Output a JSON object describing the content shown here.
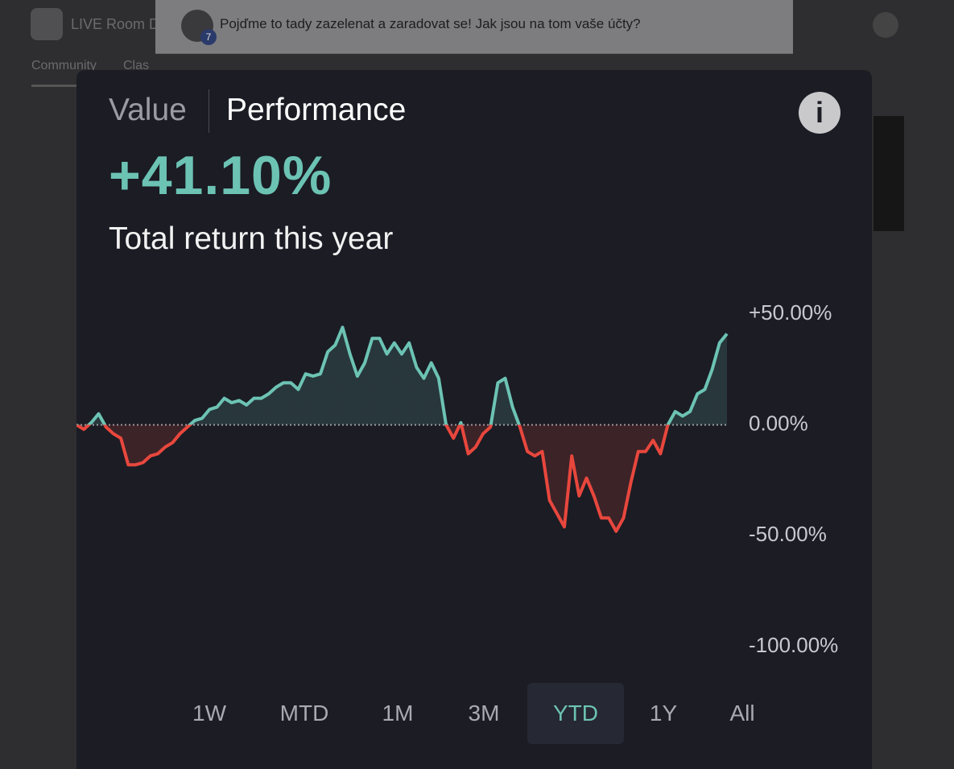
{
  "background": {
    "app_name": "LIVE Room D",
    "tabs": [
      "Community",
      "Clas"
    ],
    "post_title": "Pojďme to tady zazelenat a zaradovat se! Jak jsou na tom vaše účty?",
    "avatar_badge": "7"
  },
  "modal": {
    "tabs": [
      "Value",
      "Performance"
    ],
    "active_tab": "Performance",
    "headline": "+41.10%",
    "subtitle": "Total return this year",
    "periods": [
      "1W",
      "MTD",
      "1M",
      "3M",
      "YTD",
      "1Y",
      "All"
    ],
    "selected_period": "YTD"
  },
  "chart_data": {
    "type": "line",
    "values": [
      0,
      -2,
      1,
      5,
      -1,
      -4,
      -6,
      -18,
      -18,
      -17,
      -14,
      -13,
      -10,
      -8,
      -4,
      -1,
      2,
      3,
      7,
      8,
      12,
      10,
      11,
      9,
      12,
      12,
      14,
      17,
      19,
      19,
      16,
      23,
      22,
      23,
      33,
      36,
      44,
      32,
      22,
      28,
      39,
      39,
      32,
      37,
      32,
      37,
      26,
      21,
      28,
      21,
      0,
      -6,
      1,
      -13,
      -10,
      -4,
      -1,
      19,
      21,
      8,
      -1,
      -12,
      -14,
      -12,
      -34,
      -40,
      -46,
      -14,
      -32,
      -24,
      -32,
      -42,
      -42,
      -48,
      -42,
      -26,
      -12,
      -12,
      -7,
      -13,
      0,
      6,
      4,
      6,
      14,
      16,
      25,
      37,
      41.1
    ],
    "ylim": [
      -100,
      50
    ],
    "yticks": [
      {
        "value": 50,
        "label": "+50.00%"
      },
      {
        "value": 0,
        "label": "0.00%"
      },
      {
        "value": -50,
        "label": "-50.00%"
      },
      {
        "value": -100,
        "label": "-100.00%"
      }
    ],
    "colors": {
      "positive": "#6cc3b4",
      "negative": "#e8473d"
    }
  }
}
